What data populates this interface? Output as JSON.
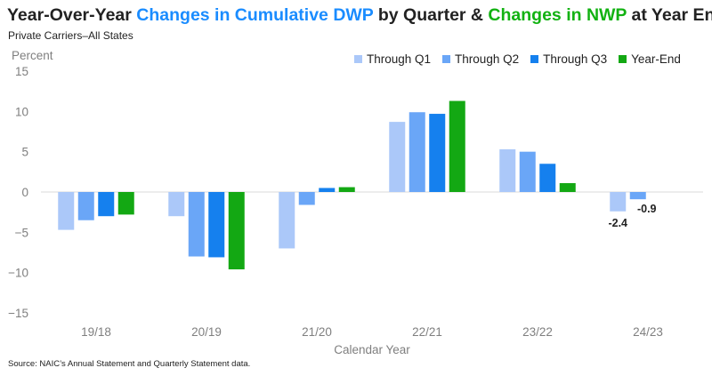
{
  "title": {
    "part1": "Year-Over-Year ",
    "part2": "Changes in Cumulative DWP",
    "part3": " by Quarter & ",
    "part4": "Changes in NWP",
    "part5": " at Year End"
  },
  "subtitle": "Private Carriers–All States",
  "source": "Source: NAIC’s Annual Statement and Quarterly Statement data.",
  "colors": {
    "title_blue": "#1a8cff",
    "title_green": "#12b212"
  },
  "chart_data": {
    "type": "bar",
    "title": "Year-Over-Year Changes in Cumulative DWP by Quarter & Changes in NWP at Year End",
    "subtitle": "Private Carriers–All States",
    "xlabel": "Calendar Year",
    "ylabel": "Percent",
    "ylim": [
      -15,
      15
    ],
    "yticks": [
      -15,
      -10,
      -5,
      0,
      5,
      10,
      15
    ],
    "ytick_labels": [
      "−15",
      "−10",
      "−5",
      "0",
      "5",
      "10",
      "15"
    ],
    "legend_position": "top-right",
    "grid": false,
    "categories": [
      "19/18",
      "20/19",
      "21/20",
      "22/21",
      "23/22",
      "24/23"
    ],
    "series": [
      {
        "name": "Through Q1",
        "color": "#abc8f9",
        "values": [
          -4.7,
          -3.0,
          -7.0,
          8.7,
          5.3,
          -2.4
        ]
      },
      {
        "name": "Through Q2",
        "color": "#6aa6f7",
        "values": [
          -3.5,
          -8.0,
          -1.6,
          9.9,
          5.0,
          -0.9
        ]
      },
      {
        "name": "Through Q3",
        "color": "#1580ee",
        "values": [
          -3.0,
          -8.1,
          0.5,
          9.7,
          3.5,
          null
        ]
      },
      {
        "name": "Year-End",
        "color": "#13a813",
        "values": [
          -2.8,
          -9.6,
          0.6,
          11.3,
          1.1,
          null
        ]
      }
    ],
    "annotations": [
      {
        "category": "24/23",
        "series": "Through Q1",
        "text": "-2.4"
      },
      {
        "category": "24/23",
        "series": "Through Q2",
        "text": "-0.9"
      }
    ]
  }
}
